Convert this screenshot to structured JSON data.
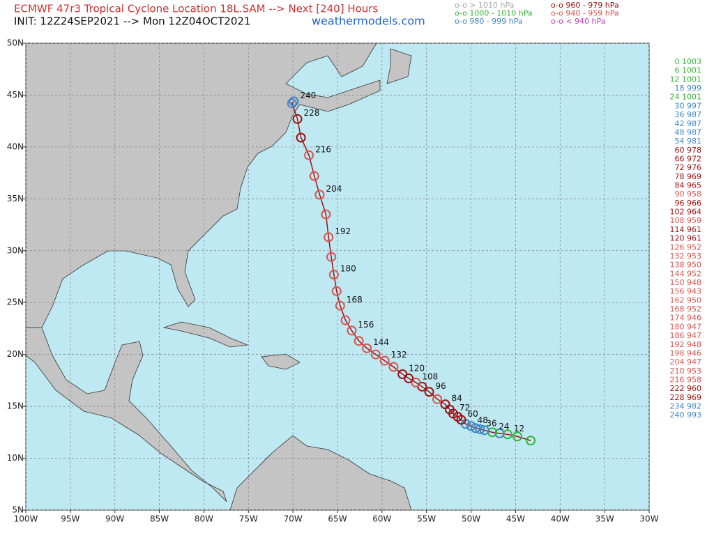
{
  "chart_data": {
    "type": "track",
    "title": "ECMWF 47r3 Tropical Cyclone Location 18L.SAM --> Next [240] Hours",
    "subtitle": "INIT: 12Z24SEP2021 --> Mon 12Z04OCT2021",
    "source": "weathermodels.com",
    "legend": [
      {
        "label": "o-o > 1010 hPa",
        "color": "#a8a8a8"
      },
      {
        "label": "o-o 1000 - 1010 hPa",
        "color": "#33b533"
      },
      {
        "label": "o-o 980 - 999 hPa",
        "color": "#3d85c6"
      },
      {
        "label": "o-o 960 - 979 hPa",
        "color": "#a01010"
      },
      {
        "label": "o-o 940 - 959 hPa",
        "color": "#d9534f"
      },
      {
        "label": "o-o < 940 hPa",
        "color": "#c03cc0"
      }
    ],
    "line_color": "#a01010",
    "hours": [
      0,
      6,
      12,
      18,
      24,
      30,
      36,
      42,
      48,
      54,
      60,
      66,
      72,
      78,
      84,
      90,
      96,
      102,
      108,
      114,
      120,
      126,
      132,
      138,
      144,
      150,
      156,
      162,
      168,
      174,
      180,
      186,
      192,
      198,
      204,
      210,
      216,
      222,
      228,
      234,
      240
    ],
    "lon": [
      -43.3,
      -44.8,
      -45.9,
      -46.8,
      -47.6,
      -48.5,
      -49.0,
      -49.5,
      -50.0,
      -50.6,
      -51.1,
      -51.5,
      -52.0,
      -52.4,
      -52.9,
      -53.8,
      -54.7,
      -55.5,
      -56.2,
      -57.0,
      -57.7,
      -58.7,
      -59.7,
      -60.7,
      -61.7,
      -62.6,
      -63.4,
      -64.1,
      -64.7,
      -65.1,
      -65.4,
      -65.7,
      -66.0,
      -66.3,
      -67.0,
      -67.6,
      -68.2,
      -69.1,
      -69.5,
      -70.1,
      -69.9
    ],
    "lat": [
      11.7,
      12.1,
      12.3,
      12.4,
      12.5,
      12.7,
      12.8,
      12.9,
      13.1,
      13.3,
      13.7,
      14.0,
      14.3,
      14.7,
      15.2,
      15.7,
      16.4,
      16.9,
      17.3,
      17.7,
      18.1,
      18.8,
      19.4,
      20.0,
      20.6,
      21.3,
      22.3,
      23.3,
      24.7,
      26.1,
      27.7,
      29.4,
      31.3,
      33.5,
      35.4,
      37.2,
      39.2,
      40.9,
      42.7,
      44.2,
      44.4
    ],
    "pressure": [
      1003,
      1001,
      1001,
      999,
      1001,
      997,
      987,
      987,
      987,
      981,
      978,
      972,
      976,
      969,
      965,
      958,
      966,
      964,
      959,
      961,
      961,
      952,
      953,
      950,
      952,
      948,
      943,
      950,
      952,
      946,
      947,
      947,
      948,
      946,
      947,
      953,
      958,
      960,
      969,
      982,
      993
    ],
    "colors": [
      "#33b533",
      "#33b533",
      "#33b533",
      "#3d85c6",
      "#33b533",
      "#3d85c6",
      "#3d85c6",
      "#3d85c6",
      "#3d85c6",
      "#3d85c6",
      "#a01010",
      "#a01010",
      "#a01010",
      "#a01010",
      "#a01010",
      "#d9534f",
      "#a01010",
      "#a01010",
      "#d9534f",
      "#a01010",
      "#a01010",
      "#d9534f",
      "#d9534f",
      "#d9534f",
      "#d9534f",
      "#d9534f",
      "#d9534f",
      "#d9534f",
      "#d9534f",
      "#d9534f",
      "#d9534f",
      "#d9534f",
      "#d9534f",
      "#d9534f",
      "#d9534f",
      "#d9534f",
      "#d9534f",
      "#a01010",
      "#a01010",
      "#3d85c6",
      "#3d85c6"
    ],
    "xlim": [
      -100,
      -30
    ],
    "ylim": [
      5,
      50
    ],
    "xticks": [
      {
        "value": -100,
        "label": "100W"
      },
      {
        "value": -95,
        "label": "95W"
      },
      {
        "value": -90,
        "label": "90W"
      },
      {
        "value": -85,
        "label": "85W"
      },
      {
        "value": -80,
        "label": "80W"
      },
      {
        "value": -75,
        "label": "75W"
      },
      {
        "value": -70,
        "label": "70W"
      },
      {
        "value": -65,
        "label": "65W"
      },
      {
        "value": -60,
        "label": "60W"
      },
      {
        "value": -55,
        "label": "55W"
      },
      {
        "value": -50,
        "label": "50W"
      },
      {
        "value": -45,
        "label": "45W"
      },
      {
        "value": -40,
        "label": "40W"
      },
      {
        "value": -35,
        "label": "35W"
      },
      {
        "value": -30,
        "label": "30W"
      }
    ],
    "yticks": [
      {
        "value": 5,
        "label": "5N"
      },
      {
        "value": 10,
        "label": "10N"
      },
      {
        "value": 15,
        "label": "15N"
      },
      {
        "value": 20,
        "label": "20N"
      },
      {
        "value": 25,
        "label": "25N"
      },
      {
        "value": 30,
        "label": "30N"
      },
      {
        "value": 35,
        "label": "35N"
      },
      {
        "value": 40,
        "label": "40N"
      },
      {
        "value": 45,
        "label": "45N"
      },
      {
        "value": 50,
        "label": "50N"
      }
    ],
    "grid": true
  }
}
